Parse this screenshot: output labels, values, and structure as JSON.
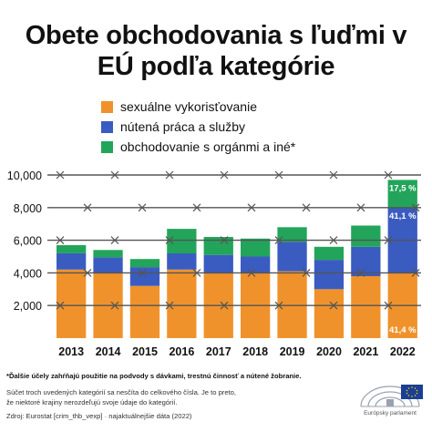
{
  "chart_data": {
    "type": "bar",
    "stacked": true,
    "title_lines": [
      "Obete obchodovania s ľuďmi v",
      "EÚ podľa kategórie"
    ],
    "categories": [
      "2013",
      "2014",
      "2015",
      "2016",
      "2017",
      "2018",
      "2019",
      "2020",
      "2021",
      "2022"
    ],
    "series": [
      {
        "name": "sexuálne vykorisťovanie",
        "color": "#f0922b",
        "values": [
          4200,
          4000,
          3200,
          4200,
          4000,
          4000,
          4100,
          3000,
          3800,
          4000
        ]
      },
      {
        "name": "nútená práca a služby",
        "color": "#3a5cc0",
        "values": [
          1000,
          950,
          1150,
          1000,
          1100,
          1000,
          1800,
          1800,
          1800,
          4000
        ]
      },
      {
        "name": "obchodovanie s orgánmi a iné*",
        "color": "#22a55a",
        "values": [
          500,
          450,
          500,
          1500,
          1100,
          1100,
          900,
          800,
          1300,
          1700
        ]
      }
    ],
    "data_labels": [
      {
        "category": "2022",
        "series": 2,
        "text": "17,5 %"
      },
      {
        "category": "2022",
        "series": 1,
        "text": "41,1 %"
      },
      {
        "category": "2022",
        "series": 0,
        "text": "41,4 %"
      }
    ],
    "ylim": [
      0,
      10000
    ],
    "yticks": [
      2000,
      4000,
      6000,
      8000,
      10000
    ],
    "ytick_labels": [
      "2,000",
      "4,000",
      "6,000",
      "8,000",
      "10,000"
    ],
    "grid": true,
    "legend_position": "top-left"
  },
  "notes": {
    "footnote": "*Ďalšie účely zahŕňajú použitie na podvody s dávkami, trestnú činnosť a nútené žobranie.",
    "note_lines": [
      "Súčet troch uvedených kategórií sa nesčíta do celkového čísla. Je to preto,",
      "že niektoré krajiny nerozdeľujú svoje údaje do kategórií."
    ],
    "source": "Zdroj: Eurostat [crim_thb_vexp] · najaktuálnejšie dáta (2022)"
  },
  "branding": {
    "logo_text": "Európsky parlament"
  },
  "colors": {
    "text": "#111111",
    "gridline": "#555555"
  }
}
